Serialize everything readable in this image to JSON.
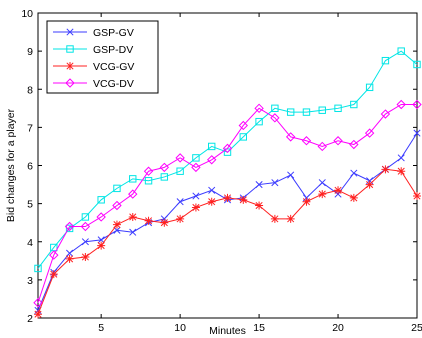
{
  "chart_data": {
    "type": "line",
    "title": "",
    "xlabel": "Minutes",
    "ylabel": "Bid changes for a player",
    "xlim": [
      1,
      25
    ],
    "ylim": [
      2,
      10
    ],
    "xticks": [
      5,
      10,
      15,
      20,
      25
    ],
    "yticks": [
      2,
      3,
      4,
      5,
      6,
      7,
      8,
      9,
      10
    ],
    "grid": false,
    "legend": "top-left",
    "x": [
      1,
      2,
      3,
      4,
      5,
      6,
      7,
      8,
      9,
      10,
      11,
      12,
      13,
      14,
      15,
      16,
      17,
      18,
      19,
      20,
      21,
      22,
      23,
      24,
      25
    ],
    "series": [
      {
        "name": "GSP-GV",
        "color": "#3b3bff",
        "marker": "x",
        "values": [
          2.2,
          3.2,
          3.7,
          4.0,
          4.05,
          4.3,
          4.25,
          4.5,
          4.6,
          5.05,
          5.2,
          5.35,
          5.1,
          5.15,
          5.5,
          5.55,
          5.75,
          5.15,
          5.55,
          5.25,
          5.8,
          5.6,
          5.9,
          6.2,
          6.85
        ]
      },
      {
        "name": "GSP-DV",
        "color": "#00e5e5",
        "marker": "square",
        "values": [
          3.3,
          3.85,
          4.35,
          4.65,
          5.1,
          5.4,
          5.65,
          5.6,
          5.7,
          5.85,
          6.2,
          6.5,
          6.35,
          6.75,
          7.15,
          7.5,
          7.4,
          7.4,
          7.45,
          7.5,
          7.6,
          8.05,
          8.75,
          9.0,
          8.65
        ]
      },
      {
        "name": "VCG-GV",
        "color": "#ff2020",
        "marker": "star",
        "values": [
          2.1,
          3.15,
          3.55,
          3.6,
          3.9,
          4.45,
          4.65,
          4.55,
          4.5,
          4.6,
          4.9,
          5.05,
          5.15,
          5.1,
          4.95,
          4.6,
          4.6,
          5.05,
          5.25,
          5.35,
          5.15,
          5.5,
          5.9,
          5.85,
          5.2
        ]
      },
      {
        "name": "VCG-DV",
        "color": "#ff00ff",
        "marker": "diamond",
        "values": [
          2.4,
          3.65,
          4.4,
          4.4,
          4.65,
          4.95,
          5.25,
          5.85,
          5.95,
          6.2,
          5.95,
          6.15,
          6.45,
          7.05,
          7.5,
          7.25,
          6.75,
          6.65,
          6.5,
          6.65,
          6.55,
          6.85,
          7.35,
          7.6,
          7.6
        ]
      }
    ]
  }
}
